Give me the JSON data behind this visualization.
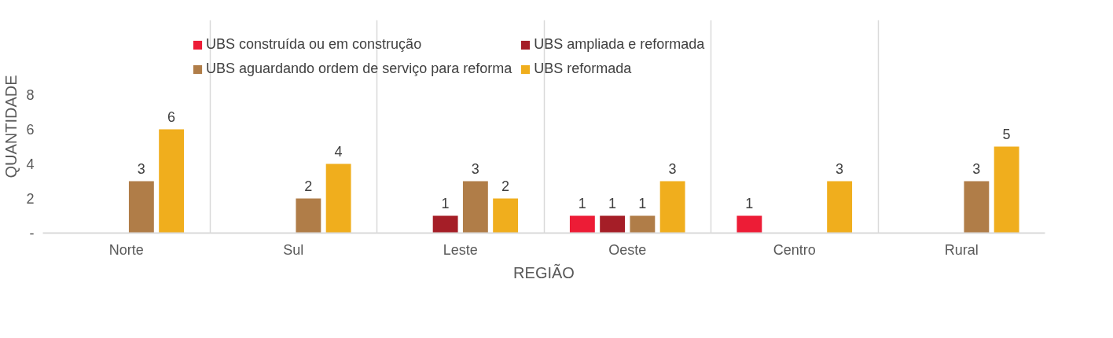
{
  "chart_data": {
    "type": "bar",
    "xlabel": "REGIÃO",
    "ylabel": "QUANTIDADE",
    "categories": [
      "Norte",
      "Sul",
      "Leste",
      "Oeste",
      "Centro",
      "Rural"
    ],
    "series": [
      {
        "name": "UBS construída ou em construção",
        "color": "#ed1c36",
        "values": [
          null,
          null,
          null,
          1,
          1,
          null
        ]
      },
      {
        "name": "UBS ampliada e reformada",
        "color": "#a51e27",
        "values": [
          null,
          null,
          1,
          1,
          null,
          null
        ]
      },
      {
        "name": "UBS aguardando ordem de serviço para reforma",
        "color": "#b07d48",
        "values": [
          3,
          2,
          3,
          1,
          null,
          3
        ]
      },
      {
        "name": "UBS reformada",
        "color": "#f0ae1d",
        "values": [
          6,
          4,
          2,
          3,
          3,
          5
        ]
      }
    ],
    "ylim": [
      0,
      8
    ],
    "yticks": [
      {
        "value": 0,
        "label": "-"
      },
      2,
      4,
      6,
      8
    ],
    "grid": "x",
    "legend": "top",
    "data_labels": true
  }
}
